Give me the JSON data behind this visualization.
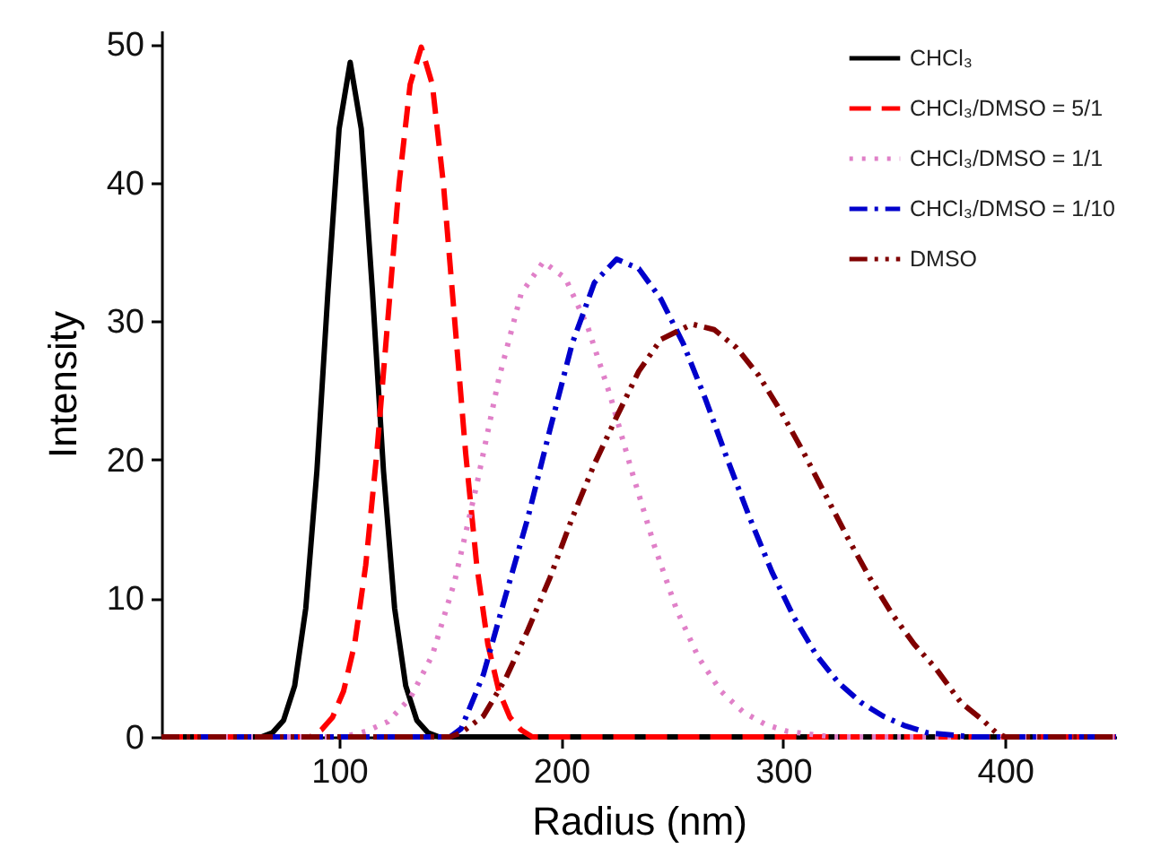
{
  "chart_data": {
    "type": "line",
    "xlabel": "Radius (nm)",
    "ylabel": "Intensity",
    "xlim": [
      20,
      450
    ],
    "xticks": [
      100,
      200,
      300,
      400
    ],
    "ylim": [
      0,
      51
    ],
    "yticks": [
      0,
      10,
      20,
      30,
      40,
      50
    ],
    "grid": false,
    "legend": "top right",
    "marker": "none",
    "series": [
      {
        "name": "CHCl₃",
        "color": "#000000",
        "line_style": "solid",
        "x": [
          20,
          65,
          70,
          75,
          80,
          85,
          90,
          95,
          100,
          105,
          110,
          115,
          120,
          125,
          130,
          135,
          140,
          145,
          450
        ],
        "values": [
          0,
          0,
          0.3,
          1.2,
          3.7,
          9.3,
          19.2,
          32.2,
          43.9,
          48.7,
          43.9,
          32.2,
          19.2,
          9.3,
          3.7,
          1.2,
          0.3,
          0,
          0
        ]
      },
      {
        "name": "CHCl₃/DMSO = 5/1",
        "color": "#ff0000",
        "line_style": "dashed",
        "x": [
          20,
          87,
          92,
          97,
          102,
          107,
          112,
          117,
          122,
          127,
          132,
          137,
          142,
          147,
          152,
          157,
          162,
          167,
          172,
          177,
          182,
          187,
          450
        ],
        "values": [
          0,
          0,
          0.5,
          1.4,
          3.3,
          6.7,
          12.4,
          20.5,
          30.2,
          39.9,
          47.1,
          49.8,
          47.1,
          39.9,
          30.2,
          20.5,
          12.4,
          6.7,
          3.3,
          1.4,
          0.5,
          0,
          0
        ]
      },
      {
        "name": "CHCl₃/DMSO = 1/1",
        "color": "#e080c8",
        "line_style": "dotted",
        "x": [
          20,
          102,
          112,
          122,
          132,
          142,
          152,
          162,
          172,
          182,
          192,
          202,
          212,
          222,
          232,
          242,
          252,
          262,
          272,
          282,
          292,
          302,
          322,
          450
        ],
        "values": [
          0,
          0,
          0.4,
          1.1,
          2.8,
          5.9,
          11.2,
          18.2,
          25.9,
          32,
          34.3,
          33.1,
          29.6,
          24.7,
          19.1,
          13.8,
          9.2,
          5.7,
          3.3,
          1.8,
          0.9,
          0.4,
          0,
          0
        ]
      },
      {
        "name": "CHCl₃/DMSO = 1/10",
        "color": "#0000cc",
        "line_style": "dashdot",
        "x": [
          20,
          150,
          155,
          165,
          175,
          185,
          195,
          205,
          215,
          225,
          235,
          245,
          255,
          265,
          275,
          285,
          295,
          305,
          315,
          325,
          335,
          345,
          355,
          365,
          385,
          450
        ],
        "values": [
          0,
          0,
          0.6,
          4.5,
          10.2,
          15.8,
          22.2,
          28.4,
          32.8,
          34.5,
          33.8,
          31.6,
          28.4,
          24.4,
          20,
          15.8,
          11.9,
          8.6,
          5.9,
          3.9,
          2.5,
          1.5,
          0.8,
          0.3,
          0,
          0
        ]
      },
      {
        "name": "DMSO",
        "color": "#800000",
        "line_style": "dashdotdot",
        "x": [
          20,
          150,
          155,
          165,
          175,
          185,
          195,
          205,
          215,
          225,
          235,
          245,
          259,
          269,
          279,
          289,
          299,
          309,
          319,
          329,
          339,
          349,
          359,
          369,
          380,
          390,
          396,
          400,
          450
        ],
        "values": [
          0,
          0,
          0.3,
          1.5,
          4.2,
          7.7,
          11.5,
          15.8,
          19.7,
          23.1,
          26.4,
          28.7,
          29.8,
          29.4,
          28.1,
          26.1,
          23.5,
          20.6,
          17.5,
          14.4,
          11.5,
          8.9,
          6.7,
          4.9,
          2.5,
          1.2,
          0.3,
          0,
          0
        ]
      }
    ]
  }
}
